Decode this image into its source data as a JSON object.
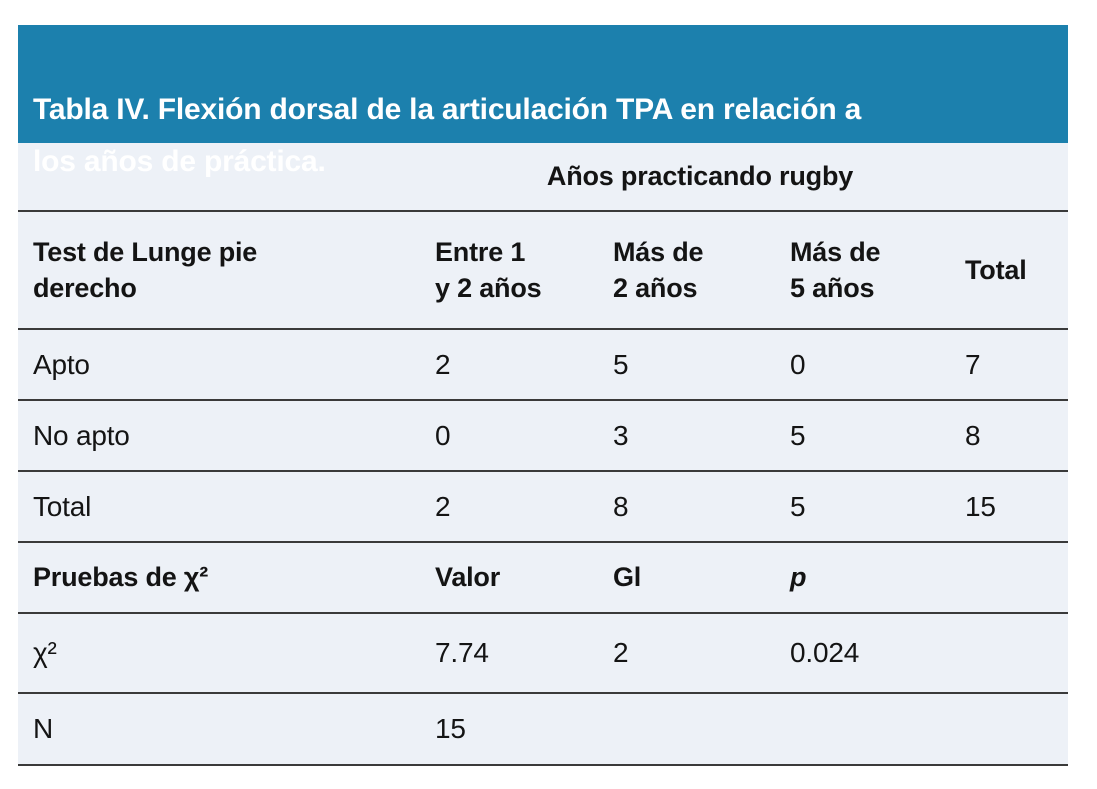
{
  "colors": {
    "header_bg": "#1c80ad",
    "table_bg": "#edf1f7",
    "rule": "#3a3a3a",
    "title_text": "#ffffff",
    "body_text": "#141414"
  },
  "table": {
    "title": "Tabla IV. Flexión dorsal de la articulación TPA en relación a\nlos años de práctica.",
    "group_header": "Años practicando rugby",
    "columns": [
      "Test de Lunge pie\nderecho",
      "Entre 1\ny 2 años",
      "Más de\n2 años",
      "Más de\n5 años",
      "Total"
    ],
    "rows": [
      {
        "label": "Apto",
        "values": [
          "2",
          "5",
          "0",
          "7"
        ]
      },
      {
        "label": "No apto",
        "values": [
          "0",
          "3",
          "5",
          "8"
        ]
      },
      {
        "label": "Total",
        "values": [
          "2",
          "8",
          "5",
          "15"
        ]
      }
    ],
    "chi_section": {
      "label": "Pruebas de χ²",
      "columns": [
        "Valor",
        "Gl",
        "p"
      ],
      "rows": [
        {
          "label": "χ²",
          "values": [
            "7.74",
            "2",
            "0.024"
          ]
        },
        {
          "label": "N",
          "values": [
            "15",
            "",
            ""
          ]
        }
      ]
    }
  }
}
